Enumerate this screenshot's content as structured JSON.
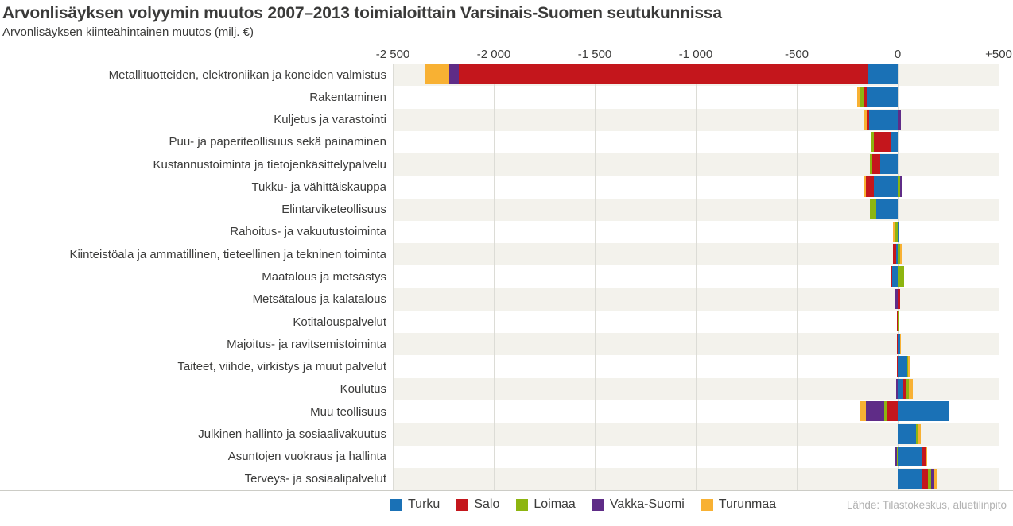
{
  "header": {
    "title": "Arvonlisäyksen volyymin muutos 2007–2013 toimialoittain Varsinais-Suomen seutukunnissa",
    "subtitle": "Arvonlisäyksen kiinteähintainen muutos (milj. €)"
  },
  "chart_data": {
    "type": "bar",
    "orientation": "horizontal",
    "stacked": true,
    "grid": true,
    "legend_position": "bottom",
    "xlabel": "milj. €",
    "xlim": [
      -2500,
      500
    ],
    "x_ticks": [
      {
        "value": -2500,
        "label": "-2 500"
      },
      {
        "value": -2000,
        "label": "-2 000"
      },
      {
        "value": -1500,
        "label": "-1 500"
      },
      {
        "value": -1000,
        "label": "-1 000"
      },
      {
        "value": -500,
        "label": "-500"
      },
      {
        "value": 0,
        "label": "0"
      },
      {
        "value": 500,
        "label": "+500"
      }
    ],
    "categories": [
      "Metallituotteiden, elektroniikan ja koneiden valmistus",
      "Rakentaminen",
      "Kuljetus ja varastointi",
      "Puu- ja paperiteollisuus sekä painaminen",
      "Kustannustoiminta ja tietojenkäsittelypalvelu",
      "Tukku- ja vähittäiskauppa",
      "Elintarviketeollisuus",
      "Rahoitus- ja vakuutustoiminta",
      "Kiinteistöala ja ammatillinen, tieteellinen ja tekninen toiminta",
      "Maatalous ja metsästys",
      "Metsätalous ja kalatalous",
      "Kotitalouspalvelut",
      "Majoitus- ja ravitsemistoiminta",
      "Taiteet, viihde, virkistys ja muut palvelut",
      "Koulutus",
      "Muu teollisuus",
      "Julkinen hallinto ja sosiaalivakuutus",
      "Asuntojen vuokraus ja hallinta",
      "Terveys- ja sosiaalipalvelut"
    ],
    "series": [
      {
        "name": "Turku",
        "color": "#1a71b6",
        "values": [
          -145,
          -150,
          -140,
          -35,
          -87,
          -118,
          -106,
          8,
          -8,
          -28,
          0,
          0,
          10,
          47,
          28,
          252,
          91,
          122,
          122
        ]
      },
      {
        "name": "Salo",
        "color": "#c4161c",
        "values": [
          -2030,
          -16,
          -12,
          -83,
          -39,
          -39,
          0,
          0,
          -16,
          -4,
          12,
          -4,
          -4,
          -4,
          16,
          -55,
          0,
          16,
          28
        ]
      },
      {
        "name": "Loimaa",
        "color": "#8db510",
        "values": [
          0,
          -24,
          0,
          -16,
          -12,
          12,
          -31,
          -12,
          12,
          30,
          0,
          4,
          0,
          4,
          12,
          -12,
          12,
          -4,
          16
        ]
      },
      {
        "name": "Vakka-Suomi",
        "color": "#5f2c87",
        "values": [
          -47,
          0,
          16,
          0,
          0,
          12,
          0,
          -4,
          0,
          0,
          -16,
          0,
          0,
          0,
          -8,
          -91,
          0,
          -8,
          16
        ]
      },
      {
        "name": "Turunmaa",
        "color": "#f8b133",
        "values": [
          -115,
          -12,
          -12,
          0,
          0,
          -12,
          0,
          -8,
          12,
          0,
          0,
          0,
          4,
          8,
          20,
          -28,
          12,
          8,
          16
        ]
      }
    ]
  },
  "footer": {
    "source": "Lähde: Tilastokeskus, aluetilinpito"
  }
}
